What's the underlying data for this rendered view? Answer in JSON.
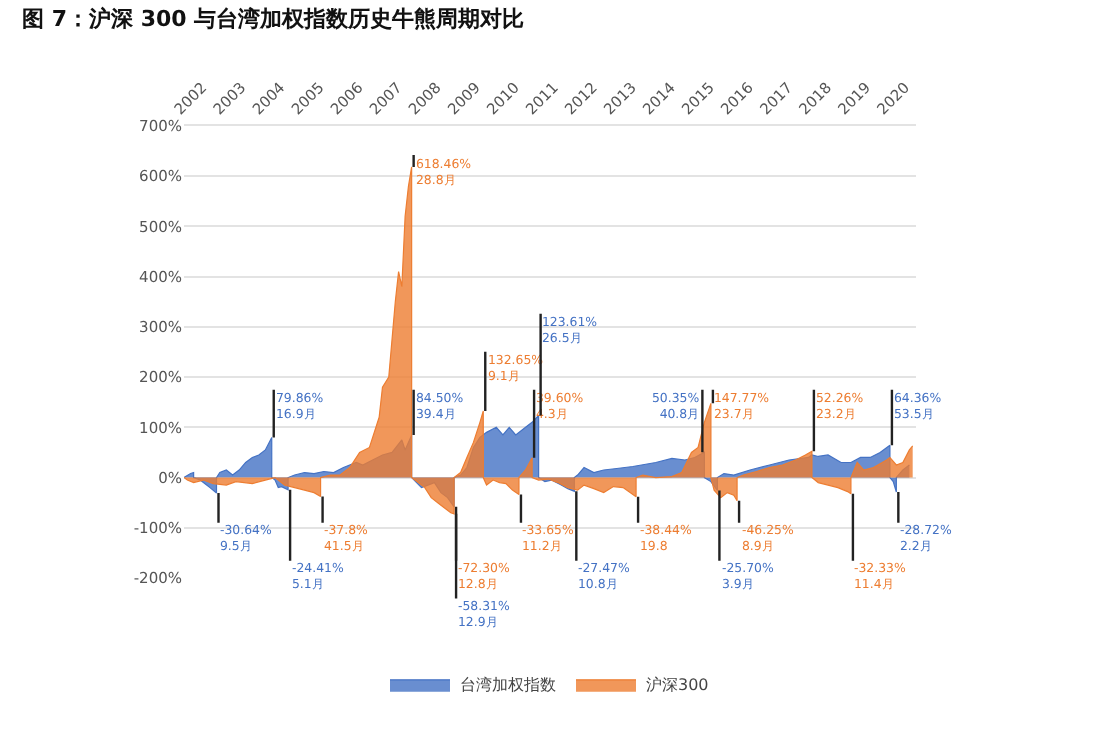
{
  "chart_data": {
    "type": "area",
    "title": "图 7：沪深 300 与台湾加权指数历史牛熊周期对比",
    "series": [
      {
        "name": "台湾加权指数",
        "color": "#4472c4",
        "x": [
          "2001-12",
          "2002-02",
          "2002-03",
          "2002-03",
          "2002-05",
          "2002-07",
          "2002-08",
          "2002-10",
          "2002-10",
          "2002-11",
          "2003-01",
          "2003-03",
          "2003-05",
          "2003-07",
          "2003-09",
          "2003-11",
          "2004-01",
          "2004-03",
          "2004-03",
          "2004-04",
          "2004-05",
          "2004-06",
          "2004-08",
          "2004-08",
          "2004-10",
          "2005-01",
          "2005-04",
          "2005-07",
          "2005-10",
          "2006-01",
          "2006-05",
          "2006-07",
          "2006-10",
          "2007-01",
          "2007-04",
          "2007-07",
          "2007-08",
          "2007-10",
          "2007-10",
          "2008-01",
          "2008-03",
          "2008-05",
          "2008-07",
          "2008-09",
          "2008-11",
          "2008-11",
          "2009-01",
          "2009-03",
          "2009-05",
          "2009-07",
          "2009-09",
          "2009-12",
          "2010-02",
          "2010-04",
          "2010-06",
          "2010-09",
          "2010-11",
          "2011-01",
          "2011-01",
          "2011-03",
          "2011-05",
          "2011-08",
          "2011-10",
          "2011-12",
          "2011-12",
          "2012-01",
          "2012-03",
          "2012-06",
          "2012-09",
          "2013-01",
          "2013-06",
          "2014-01",
          "2014-06",
          "2014-10",
          "2015-01",
          "2015-04",
          "2015-04",
          "2015-06",
          "2015-08",
          "2015-08",
          "2015-10",
          "2016-01",
          "2016-06",
          "2016-12",
          "2017-06",
          "2017-12",
          "2018-01",
          "2018-03",
          "2018-06",
          "2018-10",
          "2019-01",
          "2019-04",
          "2019-07",
          "2019-10",
          "2020-01",
          "2020-01",
          "2020-02",
          "2020-03",
          "2020-03",
          "2020-05",
          "2020-07"
        ],
        "values": [
          0,
          8,
          10,
          0,
          -5,
          -15,
          -20,
          -30.64,
          0,
          10,
          15,
          5,
          15,
          30,
          40,
          45,
          55,
          79.86,
          0,
          -5,
          -20,
          -18,
          -24.41,
          0,
          5,
          10,
          8,
          12,
          10,
          20,
          30,
          25,
          35,
          45,
          50,
          75,
          55,
          84.5,
          0,
          -20,
          -15,
          -10,
          -30,
          -40,
          -58.31,
          0,
          5,
          20,
          60,
          80,
          90,
          100,
          85,
          100,
          85,
          100,
          110,
          123.61,
          0,
          -8,
          -5,
          -15,
          -22,
          -27.47,
          0,
          5,
          20,
          10,
          15,
          18,
          22,
          30,
          38,
          35,
          40,
          50.35,
          0,
          -8,
          -25.7,
          0,
          8,
          5,
          15,
          25,
          35,
          40,
          45,
          42,
          45,
          30,
          30,
          40,
          40,
          50,
          64.36,
          0,
          -8,
          -28.72,
          0,
          15,
          25
        ]
      },
      {
        "name": "沪深300",
        "color": "#ed7d31",
        "x": [
          "2001-12",
          "2002-01",
          "2002-03",
          "2002-06",
          "2002-09",
          "2003-01",
          "2003-04",
          "2003-09",
          "2004-01",
          "2004-04",
          "2004-07",
          "2004-10",
          "2005-01",
          "2005-04",
          "2005-06",
          "2005-06",
          "2005-09",
          "2005-12",
          "2006-03",
          "2006-06",
          "2006-09",
          "2006-12",
          "2007-01",
          "2007-03",
          "2007-05",
          "2007-06",
          "2007-07",
          "2007-08",
          "2007-09",
          "2007-10",
          "2007-10",
          "2007-12",
          "2008-02",
          "2008-04",
          "2008-06",
          "2008-08",
          "2008-10",
          "2008-11",
          "2008-11",
          "2009-01",
          "2009-03",
          "2009-05",
          "2009-07",
          "2009-08",
          "2009-08",
          "2009-09",
          "2009-11",
          "2010-01",
          "2010-03",
          "2010-05",
          "2010-07",
          "2010-07",
          "2010-09",
          "2010-11",
          "2010-11",
          "2011-01",
          "2011-04",
          "2011-07",
          "2011-10",
          "2012-01",
          "2012-03",
          "2012-06",
          "2012-09",
          "2012-12",
          "2013-03",
          "2013-07",
          "2013-07",
          "2013-09",
          "2014-01",
          "2014-06",
          "2014-09",
          "2014-12",
          "2015-02",
          "2015-04",
          "2015-06",
          "2015-06",
          "2015-07",
          "2015-09",
          "2015-11",
          "2016-01",
          "2016-02",
          "2016-02",
          "2016-04",
          "2016-08",
          "2016-12",
          "2017-04",
          "2017-08",
          "2017-11",
          "2018-01",
          "2018-01",
          "2018-03",
          "2018-06",
          "2018-09",
          "2018-12",
          "2019-01",
          "2019-01",
          "2019-03",
          "2019-05",
          "2019-08",
          "2019-12",
          "2020-01",
          "2020-03",
          "2020-05",
          "2020-07",
          "2020-08"
        ],
        "values": [
          0,
          -5,
          -10,
          -5,
          -12,
          -15,
          -8,
          -12,
          -5,
          0,
          -15,
          -20,
          -25,
          -30,
          -37.8,
          0,
          5,
          5,
          20,
          50,
          60,
          120,
          180,
          200,
          350,
          410,
          380,
          520,
          580,
          618.46,
          0,
          -10,
          -20,
          -40,
          -50,
          -60,
          -70,
          -72.3,
          0,
          10,
          40,
          70,
          110,
          132.65,
          0,
          -15,
          -5,
          -10,
          -12,
          -25,
          -33.65,
          0,
          15,
          39.6,
          0,
          -5,
          -3,
          -10,
          -20,
          -25,
          -15,
          -22,
          -30,
          -18,
          -20,
          -38.44,
          0,
          5,
          0,
          2,
          10,
          50,
          60,
          110,
          147.77,
          0,
          -25,
          -40,
          -30,
          -35,
          -46.25,
          0,
          5,
          12,
          20,
          25,
          35,
          45,
          52.26,
          0,
          -10,
          -15,
          -20,
          -28,
          -32.33,
          0,
          30,
          15,
          20,
          35,
          40,
          25,
          30,
          55,
          63
        ]
      }
    ],
    "annotations": [
      {
        "text": "-30.64%\n9.5月",
        "x": "2002-10",
        "y": -30.64
      },
      {
        "text": "79.86%\n16.9月",
        "x": "2004-03",
        "y": 79.86
      },
      {
        "text": "-24.41%\n5.1月",
        "x": "2004-08",
        "y": -24.41
      },
      {
        "text": "-37.8%\n41.5月",
        "x": "2005-06",
        "y": -37.8
      },
      {
        "text": "84.50%\n39.4月",
        "x": "2007-10",
        "y": 84.5
      },
      {
        "text": "618.46%\n28.8月",
        "x": "2007-10",
        "y": 618.46
      },
      {
        "text": "-72.30%\n12.8月",
        "x": "2008-11",
        "y": -72.3
      },
      {
        "text": "-58.31%\n12.9月",
        "x": "2008-11",
        "y": -58.31
      },
      {
        "text": "132.65%\n9.1月",
        "x": "2009-08",
        "y": 132.65
      },
      {
        "text": "-33.65%\n11.2月",
        "x": "2010-07",
        "y": -33.65
      },
      {
        "text": "39.60%\n4.3月",
        "x": "2010-11",
        "y": 39.6
      },
      {
        "text": "123.61%\n26.5月",
        "x": "2011-01",
        "y": 123.61
      },
      {
        "text": "-27.47%\n10.8月",
        "x": "2011-12",
        "y": -27.47
      },
      {
        "text": "-38.44%\n19.8",
        "x": "2013-07",
        "y": -38.44
      },
      {
        "text": "50.35%\n40.8月",
        "x": "2015-04",
        "y": 50.35
      },
      {
        "text": "147.77%\n23.7月",
        "x": "2015-06",
        "y": 147.77
      },
      {
        "text": "-25.70%\n3.9月",
        "x": "2015-08",
        "y": -25.7
      },
      {
        "text": "-46.25%\n8.9月",
        "x": "2016-02",
        "y": -46.25
      },
      {
        "text": "52.26%\n23.2月",
        "x": "2018-01",
        "y": 52.26
      },
      {
        "text": "-32.33%\n11.4月",
        "x": "2019-01",
        "y": -32.33
      },
      {
        "text": "64.36%\n53.5月",
        "x": "2020-01",
        "y": 64.36
      },
      {
        "text": "-28.72%\n2.2月",
        "x": "2020-03",
        "y": -28.72
      }
    ],
    "xlim": [
      "2001-12",
      "2020-09"
    ],
    "xticks": [
      "2002",
      "2003",
      "2004",
      "2005",
      "2006",
      "2007",
      "2008",
      "2009",
      "2010",
      "2011",
      "2012",
      "2013",
      "2014",
      "2015",
      "2016",
      "2017",
      "2018",
      "2019",
      "2020"
    ],
    "ylim": [
      -200,
      700
    ],
    "yticks": [
      {
        "value": -200,
        "label": "-200%"
      },
      {
        "value": -100,
        "label": "-100%"
      },
      {
        "value": 0,
        "label": "0%"
      },
      {
        "value": 100,
        "label": "100%"
      },
      {
        "value": 200,
        "label": "200%"
      },
      {
        "value": 300,
        "label": "300%"
      },
      {
        "value": 400,
        "label": "400%"
      },
      {
        "value": 500,
        "label": "500%"
      },
      {
        "value": 600,
        "label": "600%"
      },
      {
        "value": 700,
        "label": "700%"
      }
    ],
    "grid": "y",
    "legend": "bottom"
  }
}
